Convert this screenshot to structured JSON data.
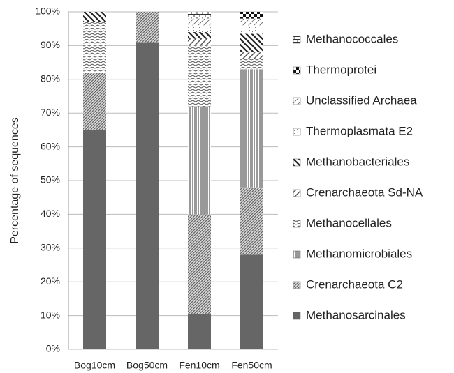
{
  "chart_data": {
    "type": "stacked_bar",
    "y_label": "Percentage of sequences",
    "categories": [
      "Bog10cm",
      "Bog50cm",
      "Fen10cm",
      "Fen50cm"
    ],
    "ylim": [
      0,
      100
    ],
    "yticks": [
      {
        "value": 0,
        "label": "0%"
      },
      {
        "value": 10,
        "label": "10%"
      },
      {
        "value": 20,
        "label": "20%"
      },
      {
        "value": 30,
        "label": "30%"
      },
      {
        "value": 40,
        "label": "40%"
      },
      {
        "value": 50,
        "label": "50%"
      },
      {
        "value": 60,
        "label": "60%"
      },
      {
        "value": 70,
        "label": "70%"
      },
      {
        "value": 80,
        "label": "80%"
      },
      {
        "value": 90,
        "label": "90%"
      },
      {
        "value": 100,
        "label": "100%"
      }
    ],
    "grid": true,
    "legend": "right",
    "series": [
      {
        "name": "Methanosarcinales",
        "color": "#666666",
        "pattern": "solid",
        "values": [
          65,
          91,
          10.5,
          28
        ]
      },
      {
        "name": "Crenarchaeota C2",
        "color": "#666666",
        "pattern": "dense-diagonal",
        "values": [
          17,
          9,
          29.5,
          20
        ]
      },
      {
        "name": "Methanomicrobiales",
        "color": "#333333",
        "pattern": "vertical",
        "values": [
          0,
          0,
          32,
          35
        ]
      },
      {
        "name": "Methanocellales",
        "color": "#555555",
        "pattern": "zigzag",
        "values": [
          15,
          0,
          18,
          3
        ]
      },
      {
        "name": "Crenarchaeota Sd-NA",
        "color": "#555555",
        "pattern": "diagonal",
        "values": [
          0,
          0,
          2,
          2
        ]
      },
      {
        "name": "Methanobacteriales",
        "color": "#222222",
        "pattern": "backslash",
        "values": [
          3,
          0,
          2,
          5.5
        ]
      },
      {
        "name": "Thermoplasmata E2",
        "color": "#888888",
        "pattern": "dots",
        "values": [
          0,
          0,
          2,
          2.5
        ]
      },
      {
        "name": "Unclassified Archaea",
        "color": "#666666",
        "pattern": "light-diagonal",
        "values": [
          0,
          0,
          2,
          2
        ]
      },
      {
        "name": "Thermoprotei",
        "color": "#111111",
        "pattern": "checker",
        "values": [
          0,
          0,
          0,
          2
        ]
      },
      {
        "name": "Methanococcales",
        "color": "#333333",
        "pattern": "brick",
        "values": [
          0,
          0,
          2,
          0
        ]
      }
    ]
  }
}
